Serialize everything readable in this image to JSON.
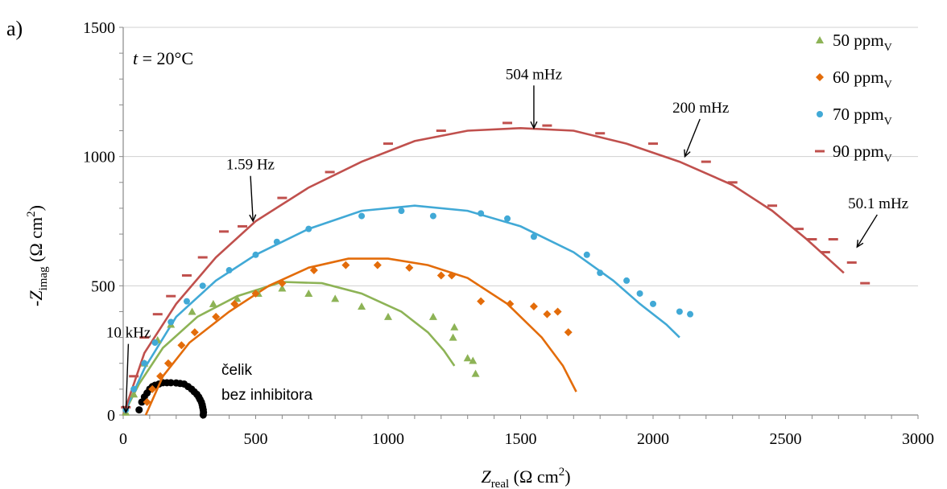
{
  "chart_data": {
    "type": "scatter",
    "panel_label": "a)",
    "condition": {
      "symbol": "t",
      "text": " = 20°C"
    },
    "xlabel": {
      "symbol": "Z",
      "sub": "real",
      "unit": " (Ω cm",
      "sup": "2",
      "close": ")"
    },
    "ylabel": {
      "symbol": "-Z",
      "sub": "imag",
      "unit": " (Ω cm",
      "sup": "2",
      "close": ")"
    },
    "xlim": [
      0,
      3000
    ],
    "ylim": [
      0,
      1500
    ],
    "xticks": [
      0,
      500,
      1000,
      1500,
      2000,
      2500,
      3000
    ],
    "yticks": [
      0,
      500,
      1000,
      1500
    ],
    "legend_placement": "top-right",
    "series": [
      {
        "name": "50 ppm",
        "name_sub": "V",
        "marker": "triangle",
        "color": "#8db356",
        "points": [
          [
            10,
            10
          ],
          [
            40,
            80
          ],
          [
            80,
            200
          ],
          [
            130,
            290
          ],
          [
            180,
            350
          ],
          [
            260,
            400
          ],
          [
            340,
            430
          ],
          [
            430,
            450
          ],
          [
            510,
            470
          ],
          [
            600,
            490
          ],
          [
            700,
            470
          ],
          [
            800,
            450
          ],
          [
            900,
            420
          ],
          [
            1000,
            380
          ],
          [
            1170,
            380
          ],
          [
            1250,
            340
          ],
          [
            1245,
            300
          ],
          [
            1300,
            220
          ],
          [
            1320,
            210
          ],
          [
            1330,
            160
          ]
        ],
        "fit": [
          [
            0,
            0
          ],
          [
            60,
            120
          ],
          [
            150,
            260
          ],
          [
            280,
            380
          ],
          [
            430,
            460
          ],
          [
            600,
            515
          ],
          [
            750,
            510
          ],
          [
            900,
            470
          ],
          [
            1050,
            400
          ],
          [
            1150,
            320
          ],
          [
            1210,
            250
          ],
          [
            1250,
            190
          ]
        ]
      },
      {
        "name": "60 ppm",
        "name_sub": "V",
        "marker": "diamond",
        "color": "#e36c0a",
        "points": [
          [
            90,
            50
          ],
          [
            110,
            100
          ],
          [
            140,
            150
          ],
          [
            170,
            200
          ],
          [
            220,
            270
          ],
          [
            270,
            320
          ],
          [
            350,
            380
          ],
          [
            420,
            430
          ],
          [
            500,
            470
          ],
          [
            600,
            510
          ],
          [
            720,
            560
          ],
          [
            840,
            580
          ],
          [
            960,
            580
          ],
          [
            1080,
            570
          ],
          [
            1200,
            540
          ],
          [
            1240,
            540
          ],
          [
            1350,
            440
          ],
          [
            1460,
            430
          ],
          [
            1550,
            420
          ],
          [
            1600,
            390
          ],
          [
            1640,
            400
          ],
          [
            1680,
            320
          ]
        ],
        "fit": [
          [
            85,
            0
          ],
          [
            150,
            150
          ],
          [
            250,
            280
          ],
          [
            400,
            400
          ],
          [
            550,
            500
          ],
          [
            700,
            570
          ],
          [
            850,
            605
          ],
          [
            1000,
            605
          ],
          [
            1150,
            580
          ],
          [
            1300,
            530
          ],
          [
            1450,
            430
          ],
          [
            1580,
            300
          ],
          [
            1660,
            190
          ],
          [
            1710,
            90
          ]
        ]
      },
      {
        "name": "70 ppm",
        "name_sub": "V",
        "marker": "circle",
        "color": "#41a9d6",
        "points": [
          [
            10,
            20
          ],
          [
            40,
            100
          ],
          [
            80,
            200
          ],
          [
            120,
            280
          ],
          [
            180,
            360
          ],
          [
            240,
            440
          ],
          [
            300,
            500
          ],
          [
            400,
            560
          ],
          [
            500,
            620
          ],
          [
            580,
            670
          ],
          [
            700,
            720
          ],
          [
            900,
            770
          ],
          [
            1050,
            790
          ],
          [
            1170,
            770
          ],
          [
            1350,
            780
          ],
          [
            1450,
            760
          ],
          [
            1550,
            690
          ],
          [
            1750,
            620
          ],
          [
            1800,
            550
          ],
          [
            1900,
            520
          ],
          [
            1950,
            470
          ],
          [
            2000,
            430
          ],
          [
            2100,
            400
          ],
          [
            2140,
            390
          ]
        ],
        "fit": [
          [
            0,
            0
          ],
          [
            80,
            180
          ],
          [
            200,
            380
          ],
          [
            350,
            520
          ],
          [
            500,
            620
          ],
          [
            700,
            720
          ],
          [
            900,
            790
          ],
          [
            1100,
            810
          ],
          [
            1300,
            790
          ],
          [
            1500,
            730
          ],
          [
            1700,
            630
          ],
          [
            1850,
            520
          ],
          [
            1950,
            430
          ],
          [
            2050,
            350
          ],
          [
            2100,
            300
          ]
        ]
      },
      {
        "name": "90 ppm",
        "name_sub": "V",
        "marker": "dash",
        "color": "#c0504d",
        "points": [
          [
            10,
            30
          ],
          [
            40,
            150
          ],
          [
            80,
            300
          ],
          [
            130,
            390
          ],
          [
            180,
            460
          ],
          [
            240,
            540
          ],
          [
            300,
            610
          ],
          [
            380,
            710
          ],
          [
            450,
            730
          ],
          [
            600,
            840
          ],
          [
            780,
            940
          ],
          [
            1000,
            1050
          ],
          [
            1200,
            1100
          ],
          [
            1450,
            1130
          ],
          [
            1600,
            1120
          ],
          [
            1800,
            1090
          ],
          [
            2000,
            1050
          ],
          [
            2200,
            980
          ],
          [
            2300,
            900
          ],
          [
            2450,
            810
          ],
          [
            2550,
            720
          ],
          [
            2600,
            680
          ],
          [
            2650,
            630
          ],
          [
            2680,
            680
          ],
          [
            2750,
            590
          ],
          [
            2800,
            510
          ]
        ],
        "fit": [
          [
            0,
            0
          ],
          [
            80,
            240
          ],
          [
            200,
            430
          ],
          [
            350,
            610
          ],
          [
            500,
            750
          ],
          [
            700,
            880
          ],
          [
            900,
            980
          ],
          [
            1100,
            1060
          ],
          [
            1300,
            1100
          ],
          [
            1500,
            1110
          ],
          [
            1700,
            1100
          ],
          [
            1900,
            1050
          ],
          [
            2100,
            980
          ],
          [
            2300,
            890
          ],
          [
            2450,
            790
          ],
          [
            2580,
            680
          ],
          [
            2720,
            550
          ]
        ]
      }
    ],
    "reference": {
      "label_line1": "čelik",
      "label_line2": "bez inhibitora",
      "color": "#000000",
      "points": [
        [
          60,
          20
        ],
        [
          70,
          50
        ],
        [
          80,
          70
        ],
        [
          90,
          85
        ],
        [
          100,
          100
        ],
        [
          110,
          110
        ],
        [
          120,
          115
        ],
        [
          135,
          120
        ],
        [
          150,
          125
        ],
        [
          165,
          125
        ],
        [
          180,
          125
        ],
        [
          200,
          124
        ],
        [
          215,
          122
        ],
        [
          230,
          120
        ],
        [
          245,
          110
        ],
        [
          258,
          100
        ],
        [
          268,
          90
        ],
        [
          278,
          80
        ],
        [
          285,
          70
        ],
        [
          290,
          60
        ],
        [
          295,
          50
        ],
        [
          298,
          40
        ],
        [
          300,
          30
        ],
        [
          302,
          20
        ],
        [
          303,
          10
        ],
        [
          302,
          0
        ]
      ]
    },
    "annotations": [
      {
        "text": "10 kHz",
        "x": 20,
        "y": 300,
        "arrow_to": [
          10,
          10
        ]
      },
      {
        "text": "1.59 Hz",
        "x": 480,
        "y": 950,
        "arrow_to": [
          490,
          750
        ]
      },
      {
        "text": "504 mHz",
        "x": 1550,
        "y": 1300,
        "arrow_to": [
          1550,
          1110
        ]
      },
      {
        "text": "200 mHz",
        "x": 2180,
        "y": 1170,
        "arrow_to": [
          2120,
          1000
        ]
      },
      {
        "text": "50.1 mHz",
        "x": 2850,
        "y": 800,
        "arrow_to": [
          2770,
          650
        ]
      }
    ]
  }
}
